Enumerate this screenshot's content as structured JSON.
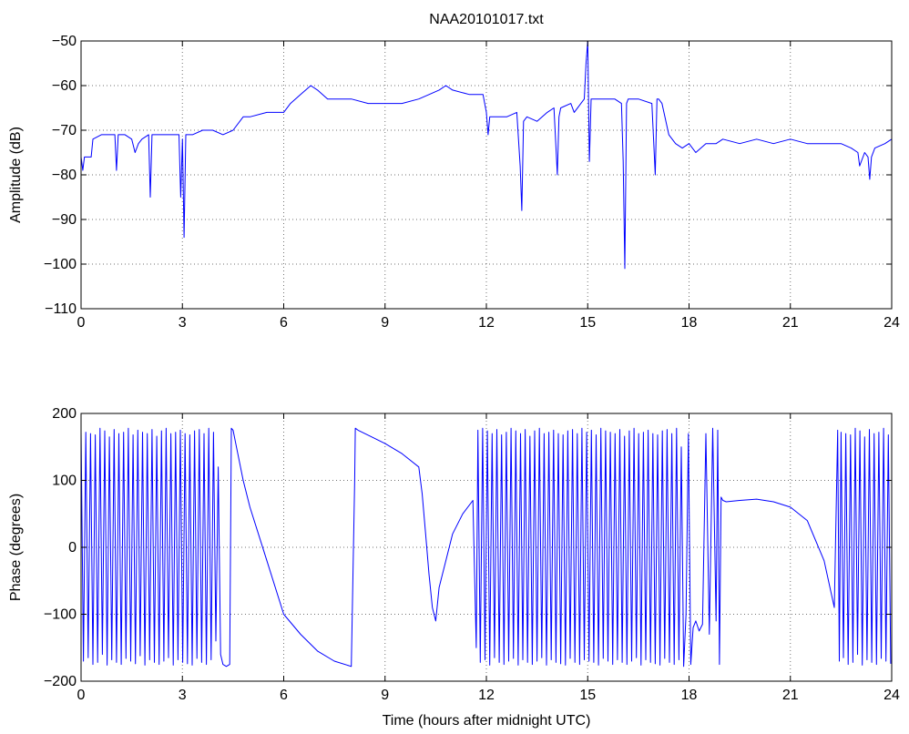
{
  "chart_data": [
    {
      "type": "line",
      "title": "NAA20101017.txt",
      "xlabel": "",
      "ylabel": "Amplitude (dB)",
      "xlim": [
        0,
        24
      ],
      "ylim": [
        -110,
        -50
      ],
      "xticks": [
        0,
        3,
        6,
        9,
        12,
        15,
        18,
        21,
        24
      ],
      "yticks": [
        -110,
        -100,
        -90,
        -80,
        -70,
        -60,
        -50
      ],
      "grid": true,
      "color": "#0000ff",
      "series": [
        {
          "x": [
            0,
            0.05,
            0.1,
            0.3,
            0.35,
            0.6,
            1.0,
            1.05,
            1.1,
            1.3,
            1.5,
            1.6,
            1.7,
            1.8,
            2.0,
            2.05,
            2.1,
            2.3,
            2.6,
            2.9,
            2.95,
            3.0,
            3.05,
            3.1,
            3.3,
            3.6,
            3.9,
            4.2,
            4.5,
            4.8,
            5.0,
            5.5,
            6.0,
            6.2,
            6.5,
            6.8,
            7.0,
            7.3,
            7.5,
            8.0,
            8.5,
            9.0,
            9.5,
            10.0,
            10.3,
            10.6,
            10.8,
            11.0,
            11.5,
            11.9,
            12.0,
            12.05,
            12.1,
            12.3,
            12.6,
            12.9,
            13.0,
            13.05,
            13.1,
            13.2,
            13.5,
            13.8,
            14.0,
            14.1,
            14.15,
            14.2,
            14.5,
            14.6,
            14.8,
            14.9,
            14.95,
            15.0,
            15.05,
            15.1,
            15.2,
            15.5,
            15.8,
            16.0,
            16.05,
            16.1,
            16.15,
            16.2,
            16.5,
            16.9,
            17.0,
            17.05,
            17.1,
            17.2,
            17.4,
            17.6,
            17.8,
            18.0,
            18.2,
            18.5,
            18.8,
            19.0,
            19.5,
            20.0,
            20.5,
            21.0,
            21.5,
            22.0,
            22.5,
            22.8,
            23.0,
            23.05,
            23.2,
            23.3,
            23.35,
            23.4,
            23.5,
            23.8,
            24.0
          ],
          "y": [
            -76,
            -79,
            -76,
            -76,
            -72,
            -71,
            -71,
            -79,
            -71,
            -71,
            -72,
            -75,
            -73,
            -72,
            -71,
            -85,
            -71,
            -71,
            -71,
            -71,
            -85,
            -72,
            -94,
            -71,
            -71,
            -70,
            -70,
            -71,
            -70,
            -67,
            -67,
            -66,
            -66,
            -64,
            -62,
            -60,
            -61,
            -63,
            -63,
            -63,
            -64,
            -64,
            -64,
            -63,
            -62,
            -61,
            -60,
            -61,
            -62,
            -62,
            -66,
            -71,
            -67,
            -67,
            -67,
            -66,
            -78,
            -88,
            -68,
            -67,
            -68,
            -66,
            -65,
            -80,
            -67,
            -65,
            -64,
            -66,
            -64,
            -63,
            -55,
            -50,
            -77,
            -63,
            -63,
            -63,
            -63,
            -64,
            -77,
            -101,
            -64,
            -63,
            -63,
            -64,
            -80,
            -63,
            -63,
            -64,
            -71,
            -73,
            -74,
            -73,
            -75,
            -73,
            -73,
            -72,
            -73,
            -72,
            -73,
            -72,
            -73,
            -73,
            -73,
            -74,
            -75,
            -78,
            -75,
            -76,
            -81,
            -76,
            -74,
            -73,
            -72
          ]
        }
      ]
    },
    {
      "type": "line",
      "title": "",
      "xlabel": "Time (hours after midnight UTC)",
      "ylabel": "Phase (degrees)",
      "xlim": [
        0,
        24
      ],
      "ylim": [
        -200,
        200
      ],
      "xticks": [
        0,
        3,
        6,
        9,
        12,
        15,
        18,
        21,
        24
      ],
      "yticks": [
        -200,
        -100,
        0,
        100,
        200
      ],
      "grid": true,
      "color": "#0000ff",
      "series": [
        {
          "x": [
            0.0,
            0.07,
            0.14,
            0.21,
            0.28,
            0.35,
            0.42,
            0.49,
            0.56,
            0.63,
            0.7,
            0.77,
            0.84,
            0.91,
            0.98,
            1.05,
            1.12,
            1.19,
            1.26,
            1.33,
            1.4,
            1.47,
            1.54,
            1.61,
            1.68,
            1.75,
            1.82,
            1.89,
            1.96,
            2.03,
            2.1,
            2.17,
            2.24,
            2.31,
            2.38,
            2.45,
            2.52,
            2.59,
            2.66,
            2.73,
            2.8,
            2.87,
            2.94,
            3.01,
            3.08,
            3.15,
            3.22,
            3.29,
            3.36,
            3.43,
            3.5,
            3.57,
            3.64,
            3.71,
            3.78,
            3.85,
            3.92,
            3.99,
            4.06,
            4.13,
            4.2,
            4.3,
            4.4,
            4.45,
            4.5,
            4.6,
            4.8,
            5.0,
            5.5,
            6.0,
            6.5,
            7.0,
            7.5,
            8.0,
            8.1,
            8.12,
            8.2,
            8.6,
            9.0,
            9.5,
            10.0,
            10.1,
            10.2,
            10.3,
            10.4,
            10.5,
            10.6,
            10.8,
            11.0,
            11.3,
            11.6,
            11.7,
            11.75,
            11.82,
            11.89,
            11.96,
            12.03,
            12.1,
            12.17,
            12.24,
            12.31,
            12.38,
            12.45,
            12.52,
            12.59,
            12.66,
            12.73,
            12.8,
            12.87,
            12.94,
            13.01,
            13.08,
            13.15,
            13.22,
            13.29,
            13.36,
            13.43,
            13.5,
            13.57,
            13.64,
            13.71,
            13.78,
            13.85,
            13.92,
            13.99,
            14.06,
            14.13,
            14.2,
            14.27,
            14.34,
            14.41,
            14.48,
            14.55,
            14.62,
            14.69,
            14.76,
            14.83,
            14.9,
            14.97,
            15.04,
            15.11,
            15.18,
            15.25,
            15.32,
            15.39,
            15.46,
            15.53,
            15.6,
            15.67,
            15.74,
            15.81,
            15.88,
            15.95,
            16.02,
            16.09,
            16.16,
            16.23,
            16.3,
            16.37,
            16.44,
            16.51,
            16.58,
            16.65,
            16.72,
            16.79,
            16.86,
            16.93,
            17.0,
            17.07,
            17.14,
            17.21,
            17.28,
            17.35,
            17.42,
            17.49,
            17.56,
            17.63,
            17.7,
            17.77,
            17.84,
            17.91,
            17.98,
            18.05,
            18.12,
            18.2,
            18.3,
            18.4,
            18.5,
            18.6,
            18.7,
            18.8,
            18.85,
            18.9,
            18.95,
            19.0,
            19.1,
            19.5,
            20.0,
            20.5,
            21.0,
            21.5,
            22.0,
            22.3,
            22.4,
            22.45,
            22.5,
            22.57,
            22.64,
            22.71,
            22.78,
            22.85,
            22.92,
            22.99,
            23.06,
            23.13,
            23.2,
            23.27,
            23.34,
            23.41,
            23.48,
            23.55,
            23.62,
            23.69,
            23.76,
            23.83,
            23.9,
            23.97
          ],
          "y": [
            175,
            -170,
            172,
            -165,
            170,
            -175,
            168,
            -172,
            178,
            -160,
            174,
            -176,
            165,
            -168,
            176,
            -172,
            170,
            -175,
            172,
            -166,
            178,
            -170,
            168,
            -174,
            175,
            -162,
            172,
            -176,
            170,
            -168,
            176,
            -172,
            166,
            -175,
            174,
            -170,
            178,
            -165,
            170,
            -176,
            172,
            -168,
            175,
            -172,
            170,
            -174,
            168,
            -176,
            174,
            -166,
            176,
            -172,
            170,
            -175,
            178,
            -168,
            172,
            -140,
            120,
            -160,
            -175,
            -178,
            -175,
            178,
            175,
            150,
            100,
            60,
            -20,
            -100,
            -130,
            -155,
            -170,
            -178,
            100,
            178,
            175,
            165,
            155,
            140,
            120,
            80,
            20,
            -40,
            -90,
            -110,
            -60,
            -20,
            20,
            50,
            70,
            -150,
            175,
            -172,
            178,
            -168,
            174,
            -176,
            170,
            -165,
            176,
            -172,
            168,
            -175,
            172,
            -170,
            178,
            -166,
            174,
            -176,
            170,
            -168,
            176,
            -172,
            166,
            -175,
            174,
            -170,
            178,
            -165,
            170,
            -176,
            172,
            -168,
            175,
            -172,
            170,
            -174,
            168,
            -176,
            174,
            -166,
            176,
            -172,
            170,
            -175,
            178,
            -168,
            172,
            -170,
            175,
            -172,
            168,
            -176,
            178,
            -166,
            174,
            -170,
            172,
            -175,
            170,
            -168,
            176,
            -172,
            166,
            -175,
            174,
            -170,
            178,
            -165,
            170,
            -176,
            172,
            -168,
            175,
            -172,
            170,
            -174,
            168,
            -176,
            174,
            -166,
            176,
            -172,
            170,
            -175,
            178,
            -168,
            150,
            -178,
            -100,
            170,
            -175,
            -120,
            -110,
            -125,
            -115,
            170,
            -130,
            178,
            -110,
            175,
            -175,
            75,
            70,
            68,
            70,
            72,
            68,
            60,
            40,
            -20,
            -90,
            175,
            -170,
            172,
            -165,
            170,
            -175,
            168,
            -172,
            178,
            -160,
            174,
            -176,
            165,
            -168,
            176,
            -172,
            170,
            -175,
            172,
            -166,
            178,
            -170,
            168,
            -174
          ]
        }
      ]
    }
  ]
}
